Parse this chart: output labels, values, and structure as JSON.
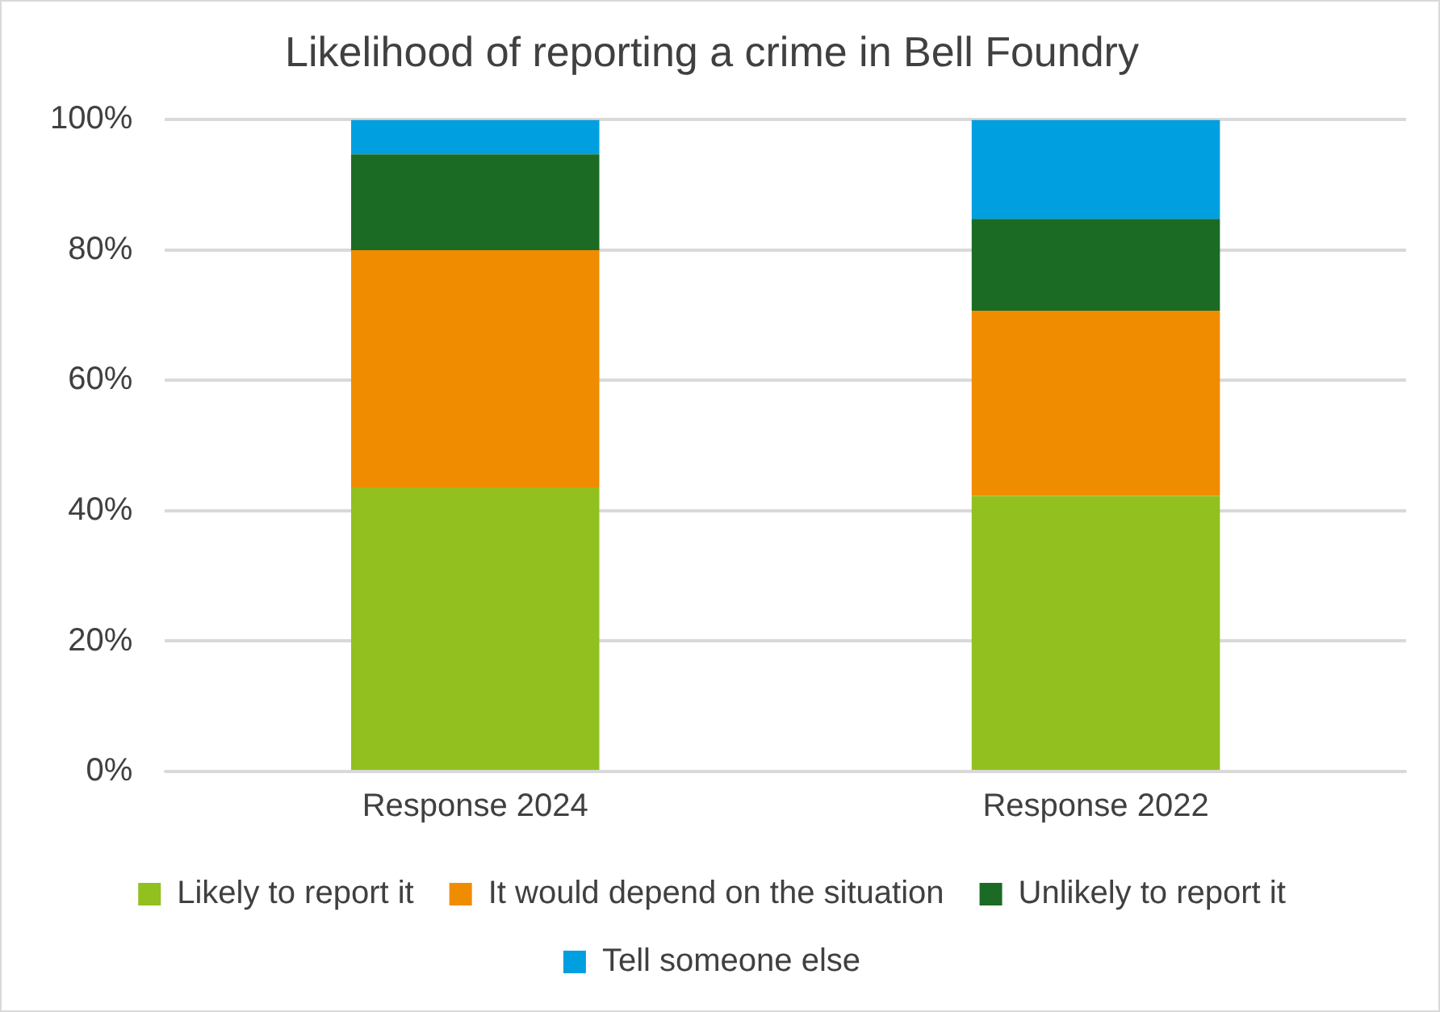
{
  "chart_data": {
    "type": "bar",
    "title": "Likelihood of reporting a crime in Bell Foundry",
    "categories": [
      "Response 2024",
      "Response 2022"
    ],
    "stacked": true,
    "series": [
      {
        "name": "Likely to report it",
        "color": "#92c01f",
        "values": [
          43.6,
          42.3
        ]
      },
      {
        "name": "It would depend on the situation",
        "color": "#f08c00",
        "values": [
          36.4,
          28.4
        ]
      },
      {
        "name": "Unlikely to report it",
        "color": "#1b6b25",
        "values": [
          14.7,
          14.1
        ]
      },
      {
        "name": "Tell someone else",
        "color": "#009fe0",
        "values": [
          5.3,
          15.2
        ]
      }
    ],
    "ylim": [
      0,
      100
    ],
    "yticks": [
      {
        "value": 0,
        "label": "0%"
      },
      {
        "value": 20,
        "label": "20%"
      },
      {
        "value": 40,
        "label": "40%"
      },
      {
        "value": 60,
        "label": "60%"
      },
      {
        "value": 80,
        "label": "80%"
      },
      {
        "value": 100,
        "label": "100%"
      }
    ],
    "grid": "y",
    "legend": "bottom"
  }
}
